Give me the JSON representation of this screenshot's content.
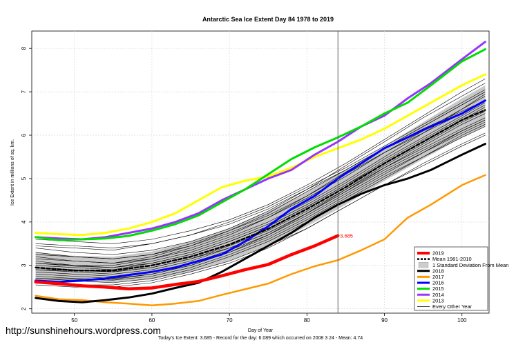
{
  "page": {
    "watermark": "http://sunshinehours.wordpress.com",
    "footer": "Today's Ice Extent: 3.685  - Record for the day: 6.089 which occurred on 2008 3 24  - Mean: 4.74"
  },
  "chart_data": {
    "type": "line",
    "title": "Antarctic Sea Ice Extent Day 84 1978 to 2019",
    "xlabel": "Day of Year",
    "ylabel": "Ice Extent in millions of sq. km.",
    "xlim": [
      44.5,
      103.5
    ],
    "ylim": [
      1.9,
      8.4
    ],
    "xticks": [
      50,
      60,
      70,
      80,
      90,
      100
    ],
    "yticks": [
      2,
      3,
      4,
      5,
      6,
      7,
      8
    ],
    "grid": true,
    "legend_position": "bottom-right",
    "vline_day": 84,
    "annotation": {
      "day": 84,
      "value": 3.685,
      "text": "3.685",
      "color": "#ff0000"
    },
    "std_band": {
      "x": [
        45,
        50,
        55,
        60,
        65,
        70,
        75,
        80,
        85,
        90,
        95,
        100,
        103
      ],
      "lower": [
        2.68,
        2.62,
        2.6,
        2.68,
        2.85,
        3.1,
        3.45,
        3.9,
        4.4,
        4.95,
        5.45,
        5.95,
        6.2
      ],
      "upper": [
        3.3,
        3.22,
        3.2,
        3.32,
        3.55,
        3.85,
        4.25,
        4.7,
        5.2,
        5.75,
        6.3,
        6.85,
        7.15
      ]
    },
    "series": [
      {
        "name": "2019",
        "color": "#ff0000",
        "width": 4.5,
        "dash": "",
        "x": [
          45,
          48,
          51,
          54,
          57,
          60,
          63,
          66,
          69,
          72,
          75,
          78,
          81,
          84
        ],
        "y": [
          2.62,
          2.58,
          2.53,
          2.5,
          2.46,
          2.48,
          2.56,
          2.63,
          2.76,
          2.9,
          3.02,
          3.25,
          3.45,
          3.685
        ]
      },
      {
        "name": "Mean 1981-2010",
        "color": "#000000",
        "width": 2.5,
        "dash": "5,3",
        "x": [
          45,
          50,
          55,
          60,
          65,
          70,
          75,
          80,
          85,
          90,
          95,
          100,
          103
        ],
        "y": [
          2.95,
          2.88,
          2.88,
          3.0,
          3.2,
          3.48,
          3.84,
          4.3,
          4.8,
          5.35,
          5.85,
          6.35,
          6.58
        ]
      },
      {
        "name": "2018",
        "color": "#000000",
        "width": 3,
        "dash": "",
        "x": [
          45,
          48,
          51,
          54,
          57,
          60,
          63,
          66,
          69,
          72,
          75,
          78,
          81,
          84,
          87,
          90,
          93,
          96,
          100,
          103
        ],
        "y": [
          2.25,
          2.18,
          2.15,
          2.2,
          2.26,
          2.35,
          2.48,
          2.6,
          2.85,
          3.15,
          3.45,
          3.75,
          4.1,
          4.4,
          4.65,
          4.85,
          5.0,
          5.2,
          5.55,
          5.8
        ]
      },
      {
        "name": "2017",
        "color": "#ff9900",
        "width": 2.5,
        "dash": "",
        "x": [
          45,
          48,
          51,
          54,
          57,
          60,
          63,
          66,
          69,
          72,
          75,
          78,
          81,
          84,
          87,
          90,
          93,
          96,
          100,
          103
        ],
        "y": [
          2.3,
          2.22,
          2.2,
          2.15,
          2.12,
          2.08,
          2.12,
          2.18,
          2.32,
          2.45,
          2.58,
          2.8,
          2.98,
          3.12,
          3.35,
          3.6,
          4.1,
          4.4,
          4.85,
          5.08
        ]
      },
      {
        "name": "2016",
        "color": "#0000ff",
        "width": 3,
        "dash": "",
        "x": [
          45,
          48,
          51,
          54,
          57,
          60,
          63,
          66,
          69,
          72,
          75,
          78,
          81,
          84,
          87,
          90,
          93,
          96,
          100,
          103
        ],
        "y": [
          2.65,
          2.62,
          2.65,
          2.7,
          2.78,
          2.85,
          2.95,
          3.1,
          3.25,
          3.55,
          3.9,
          4.3,
          4.6,
          5.0,
          5.35,
          5.7,
          5.95,
          6.2,
          6.5,
          6.8
        ]
      },
      {
        "name": "2015",
        "color": "#00dd00",
        "width": 3,
        "dash": "",
        "x": [
          45,
          48,
          51,
          54,
          57,
          60,
          63,
          66,
          69,
          72,
          75,
          78,
          81,
          84,
          87,
          90,
          93,
          96,
          100,
          103
        ],
        "y": [
          3.65,
          3.58,
          3.6,
          3.62,
          3.68,
          3.8,
          3.95,
          4.15,
          4.45,
          4.75,
          5.1,
          5.45,
          5.72,
          5.95,
          6.2,
          6.5,
          6.75,
          7.15,
          7.7,
          7.98
        ]
      },
      {
        "name": "2014",
        "color": "#9933ff",
        "width": 3,
        "dash": "",
        "x": [
          45,
          48,
          51,
          54,
          57,
          60,
          63,
          66,
          69,
          72,
          75,
          78,
          81,
          84,
          87,
          90,
          93,
          96,
          100,
          103
        ],
        "y": [
          3.65,
          3.62,
          3.6,
          3.65,
          3.75,
          3.85,
          4.0,
          4.2,
          4.5,
          4.75,
          5.0,
          5.2,
          5.55,
          5.85,
          6.2,
          6.45,
          6.85,
          7.2,
          7.75,
          8.15
        ]
      },
      {
        "name": "2013",
        "color": "#ffff00",
        "width": 3,
        "dash": "",
        "x": [
          45,
          48,
          51,
          54,
          57,
          60,
          63,
          66,
          69,
          72,
          75,
          78,
          81,
          84,
          87,
          90,
          93,
          96,
          100,
          103
        ],
        "y": [
          3.75,
          3.72,
          3.7,
          3.75,
          3.85,
          4.0,
          4.2,
          4.5,
          4.8,
          4.95,
          5.05,
          5.25,
          5.5,
          5.7,
          5.9,
          6.15,
          6.45,
          6.75,
          7.15,
          7.4
        ]
      }
    ],
    "other_years": {
      "name": "Every Other Year",
      "color": "#000000",
      "x": [
        45,
        50,
        55,
        60,
        65,
        70,
        75,
        80,
        85,
        90,
        95,
        100,
        103
      ],
      "lines": [
        [
          2.8,
          2.75,
          2.7,
          2.8,
          3.0,
          3.3,
          3.65,
          4.1,
          4.6,
          5.1,
          5.6,
          6.1,
          6.35
        ],
        [
          3.1,
          3.0,
          3.0,
          3.15,
          3.4,
          3.7,
          4.1,
          4.6,
          5.15,
          5.7,
          6.2,
          6.7,
          7.0
        ],
        [
          2.9,
          2.85,
          2.8,
          2.9,
          3.1,
          3.4,
          3.75,
          4.2,
          4.7,
          5.25,
          5.75,
          6.25,
          6.5
        ],
        [
          3.3,
          3.2,
          3.15,
          3.25,
          3.45,
          3.75,
          4.1,
          4.55,
          5.05,
          5.6,
          6.1,
          6.6,
          6.9
        ],
        [
          2.7,
          2.65,
          2.6,
          2.7,
          2.9,
          3.2,
          3.55,
          4.0,
          4.5,
          5.0,
          5.5,
          6.0,
          6.25
        ],
        [
          3.45,
          3.4,
          3.35,
          3.5,
          3.7,
          4.0,
          4.35,
          4.8,
          5.25,
          5.75,
          6.25,
          6.75,
          7.05
        ],
        [
          3.0,
          2.95,
          2.9,
          3.05,
          3.25,
          3.55,
          3.9,
          4.35,
          4.85,
          5.4,
          5.9,
          6.4,
          6.7
        ],
        [
          2.6,
          2.55,
          2.55,
          2.65,
          2.85,
          3.1,
          3.45,
          3.85,
          4.35,
          4.85,
          5.35,
          5.8,
          6.05
        ],
        [
          3.2,
          3.1,
          3.05,
          3.2,
          3.45,
          3.8,
          4.2,
          4.7,
          5.2,
          5.7,
          6.15,
          6.55,
          6.8
        ],
        [
          3.6,
          3.55,
          3.5,
          3.6,
          3.8,
          4.05,
          4.4,
          4.85,
          5.35,
          5.9,
          6.45,
          7.0,
          7.3
        ],
        [
          2.85,
          2.8,
          2.75,
          2.85,
          3.05,
          3.35,
          3.7,
          4.15,
          4.65,
          5.15,
          5.6,
          6.05,
          6.3
        ],
        [
          3.05,
          3.0,
          2.95,
          3.1,
          3.3,
          3.6,
          3.95,
          4.4,
          4.9,
          5.45,
          5.95,
          6.45,
          6.75
        ],
        [
          2.75,
          2.7,
          2.68,
          2.8,
          3.0,
          3.3,
          3.7,
          4.2,
          4.75,
          5.3,
          5.8,
          6.3,
          6.55
        ],
        [
          3.4,
          3.3,
          3.25,
          3.35,
          3.55,
          3.85,
          4.25,
          4.75,
          5.3,
          5.85,
          6.4,
          6.9,
          7.2
        ],
        [
          2.95,
          2.9,
          2.85,
          2.95,
          3.15,
          3.45,
          3.8,
          4.25,
          4.75,
          5.25,
          5.7,
          6.15,
          6.4
        ],
        [
          3.15,
          3.1,
          3.05,
          3.15,
          3.35,
          3.65,
          4.0,
          4.45,
          4.95,
          5.5,
          6.05,
          6.6,
          6.95
        ],
        [
          2.55,
          2.5,
          2.5,
          2.6,
          2.8,
          3.05,
          3.4,
          3.85,
          4.35,
          4.85,
          5.3,
          5.75,
          6.0
        ],
        [
          3.25,
          3.2,
          3.15,
          3.25,
          3.5,
          3.8,
          4.15,
          4.6,
          5.1,
          5.6,
          6.05,
          6.5,
          6.8
        ],
        [
          2.9,
          2.88,
          2.85,
          2.95,
          3.15,
          3.4,
          3.75,
          4.2,
          4.7,
          5.2,
          5.65,
          6.1,
          6.35
        ],
        [
          3.5,
          3.45,
          3.4,
          3.5,
          3.7,
          3.95,
          4.3,
          4.75,
          5.2,
          5.7,
          6.2,
          6.7,
          7.0
        ],
        [
          2.7,
          2.68,
          2.66,
          2.75,
          2.95,
          3.25,
          3.6,
          4.05,
          4.55,
          5.05,
          5.5,
          5.95,
          6.2
        ],
        [
          3.05,
          2.98,
          2.95,
          3.05,
          3.25,
          3.55,
          3.9,
          4.35,
          4.85,
          5.35,
          5.85,
          6.35,
          6.65
        ]
      ]
    },
    "legend": [
      {
        "label": "2019",
        "kind": "line",
        "color": "#ff0000",
        "width": 4
      },
      {
        "label": "Mean 1981-2010",
        "kind": "dash",
        "color": "#000000",
        "width": 2.5
      },
      {
        "label": "1 Standard Deviation From Mean",
        "kind": "box",
        "color": "#cccccc"
      },
      {
        "label": "2018",
        "kind": "line",
        "color": "#000000",
        "width": 3
      },
      {
        "label": "2017",
        "kind": "line",
        "color": "#ff9900",
        "width": 3
      },
      {
        "label": "2016",
        "kind": "line",
        "color": "#0000ff",
        "width": 3
      },
      {
        "label": "2015",
        "kind": "line",
        "color": "#00dd00",
        "width": 3
      },
      {
        "label": "2014",
        "kind": "line",
        "color": "#9933ff",
        "width": 3
      },
      {
        "label": "2013",
        "kind": "line",
        "color": "#ffff00",
        "width": 3
      },
      {
        "label": "Every Other Year",
        "kind": "line",
        "color": "#000000",
        "width": 0.8
      }
    ]
  }
}
